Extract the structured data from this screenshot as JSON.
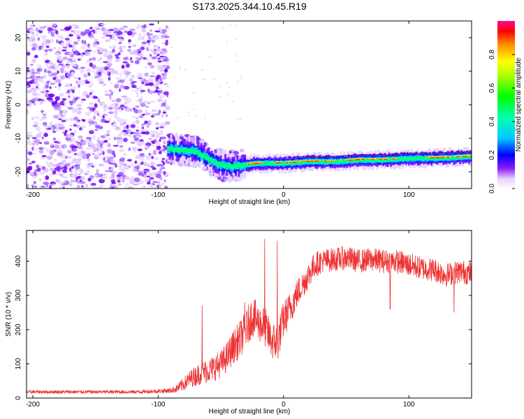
{
  "chart_data": [
    {
      "type": "heatmap",
      "title": "S173.2025.344.10.45.R19",
      "xlabel": "Height of straight line (km)",
      "ylabel": "Frequency (Hz)",
      "xlim": [
        -205,
        150
      ],
      "ylim": [
        -25,
        25
      ],
      "xticks": [
        -200,
        -100,
        0,
        100
      ],
      "xtick_labels": [
        "-200",
        "-100",
        "0",
        "100"
      ],
      "yticks": [
        -20,
        -10,
        0,
        10,
        20
      ],
      "ytick_labels": [
        "-20",
        "-10",
        "0",
        "10",
        "20"
      ],
      "colorbar": {
        "label": "Normalized spectral amplitude",
        "range": [
          0,
          1
        ],
        "ticks": [
          0.0,
          0.2,
          0.4,
          0.6,
          0.8
        ],
        "tick_labels": [
          "0.0",
          "0.2",
          "0.4",
          "0.6",
          "0.8"
        ]
      },
      "noise_region": {
        "x_from": -205,
        "x_to": -92,
        "freq_from": -25,
        "freq_to": 24
      },
      "signal_trace": {
        "x": [
          -92,
          -80,
          -70,
          -60,
          -50,
          -40,
          -30,
          -20,
          -10,
          0,
          20,
          40,
          60,
          80,
          100,
          120,
          150
        ],
        "frequency": [
          -13,
          -13.5,
          -14,
          -16,
          -18,
          -18.5,
          -18,
          -17.5,
          -17.5,
          -17.5,
          -17,
          -17,
          -16.5,
          -16.5,
          -16,
          -16,
          -15.5
        ]
      }
    },
    {
      "type": "line",
      "title": "",
      "xlabel": "Height of straight line (km)",
      "ylabel": "SNR (10 * v/v)",
      "xlim": [
        -205,
        150
      ],
      "ylim": [
        0,
        490
      ],
      "xticks": [
        -200,
        -100,
        0,
        100
      ],
      "xtick_labels": [
        "-200",
        "-100",
        "0",
        "100"
      ],
      "yticks": [
        0,
        100,
        200,
        300,
        400
      ],
      "ytick_labels": [
        "0",
        "100",
        "200",
        "300",
        "400"
      ],
      "color": "#ee3333",
      "series": [
        {
          "name": "SNR",
          "x": [
            -205,
            -180,
            -150,
            -120,
            -100,
            -90,
            -85,
            -80,
            -75,
            -70,
            -65,
            -60,
            -55,
            -50,
            -45,
            -40,
            -35,
            -30,
            -25,
            -20,
            -15,
            -10,
            -5,
            0,
            5,
            10,
            15,
            20,
            25,
            30,
            40,
            50,
            60,
            70,
            80,
            90,
            100,
            110,
            120,
            130,
            140,
            150
          ],
          "values": [
            18,
            18,
            18,
            18,
            20,
            22,
            28,
            40,
            55,
            65,
            75,
            80,
            90,
            100,
            120,
            150,
            170,
            200,
            240,
            220,
            210,
            170,
            160,
            230,
            260,
            300,
            330,
            360,
            390,
            400,
            405,
            410,
            400,
            405,
            400,
            400,
            390,
            380,
            375,
            360,
            370,
            365
          ],
          "noise_amplitude": [
            5,
            5,
            5,
            5,
            6,
            8,
            12,
            20,
            25,
            30,
            35,
            35,
            40,
            40,
            45,
            50,
            55,
            55,
            60,
            55,
            60,
            55,
            60,
            55,
            50,
            45,
            40,
            40,
            38,
            35,
            35,
            35,
            35,
            35,
            35,
            35,
            35,
            35,
            35,
            35,
            35,
            35
          ],
          "spikes": [
            {
              "x": -65,
              "value": 270
            },
            {
              "x": -31,
              "value": 280
            },
            {
              "x": -15,
              "value": 465
            },
            {
              "x": -5,
              "value": 460
            },
            {
              "x": 85,
              "value": 260
            },
            {
              "x": 136,
              "value": 250
            }
          ]
        }
      ]
    }
  ]
}
